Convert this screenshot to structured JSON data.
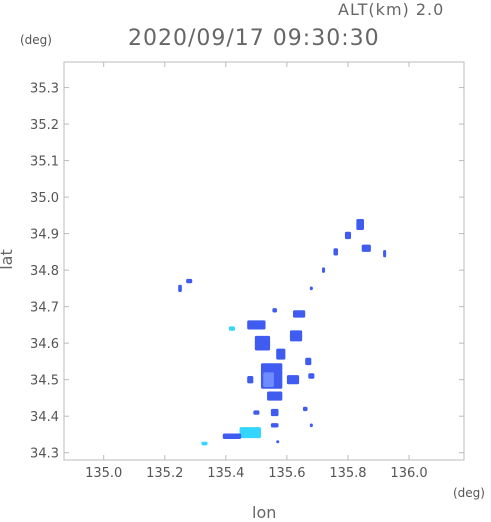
{
  "header": {
    "altitude": "ALT(km) 2.0",
    "datetime": "2020/09/17 09:30:30"
  },
  "axes": {
    "y_unit": "(deg)",
    "x_unit": "(deg)",
    "x_label": "lon",
    "y_label": "lat"
  },
  "chart_data": {
    "type": "heatmap",
    "xlabel": "lon",
    "ylabel": "lat",
    "xlim": [
      134.87,
      136.18
    ],
    "ylim": [
      34.28,
      35.37
    ],
    "x_ticks": [
      "135.0",
      "135.2",
      "135.4",
      "135.6",
      "135.8",
      "136.0"
    ],
    "y_ticks": [
      "34.3",
      "34.4",
      "34.5",
      "34.6",
      "34.7",
      "34.8",
      "34.9",
      "35.0",
      "35.1",
      "35.2",
      "35.3"
    ],
    "grid": false,
    "colors": {
      "echo_blue": "#3f5bf0",
      "echo_light": "#6f8cff",
      "echo_cyan": "#33d6ff",
      "frame": "#bbbbbb"
    },
    "echo_cells": [
      {
        "lon": 135.84,
        "lat": 34.925,
        "w": 0.025,
        "h": 0.03,
        "level": 2
      },
      {
        "lon": 135.8,
        "lat": 34.895,
        "w": 0.02,
        "h": 0.02,
        "level": 1
      },
      {
        "lon": 135.86,
        "lat": 34.86,
        "w": 0.03,
        "h": 0.02,
        "level": 2
      },
      {
        "lon": 135.76,
        "lat": 34.85,
        "w": 0.015,
        "h": 0.02,
        "level": 1
      },
      {
        "lon": 135.92,
        "lat": 34.845,
        "w": 0.01,
        "h": 0.02,
        "level": 1
      },
      {
        "lon": 135.72,
        "lat": 34.8,
        "w": 0.01,
        "h": 0.015,
        "level": 1
      },
      {
        "lon": 135.68,
        "lat": 34.75,
        "w": 0.01,
        "h": 0.01,
        "level": 1
      },
      {
        "lon": 135.28,
        "lat": 34.77,
        "w": 0.02,
        "h": 0.012,
        "level": 1
      },
      {
        "lon": 135.25,
        "lat": 34.75,
        "w": 0.012,
        "h": 0.02,
        "level": 1
      },
      {
        "lon": 135.5,
        "lat": 34.65,
        "w": 0.06,
        "h": 0.025,
        "level": 2
      },
      {
        "lon": 135.56,
        "lat": 34.69,
        "w": 0.015,
        "h": 0.012,
        "level": 1
      },
      {
        "lon": 135.64,
        "lat": 34.68,
        "w": 0.04,
        "h": 0.02,
        "level": 2
      },
      {
        "lon": 135.42,
        "lat": 34.64,
        "w": 0.02,
        "h": 0.012,
        "level": 3
      },
      {
        "lon": 135.52,
        "lat": 34.6,
        "w": 0.05,
        "h": 0.04,
        "level": 2
      },
      {
        "lon": 135.63,
        "lat": 34.62,
        "w": 0.04,
        "h": 0.03,
        "level": 2
      },
      {
        "lon": 135.58,
        "lat": 34.57,
        "w": 0.03,
        "h": 0.03,
        "level": 2
      },
      {
        "lon": 135.67,
        "lat": 34.55,
        "w": 0.02,
        "h": 0.02,
        "level": 1
      },
      {
        "lon": 135.55,
        "lat": 34.51,
        "w": 0.07,
        "h": 0.07,
        "level": 2
      },
      {
        "lon": 135.54,
        "lat": 34.5,
        "w": 0.035,
        "h": 0.04,
        "level": 4
      },
      {
        "lon": 135.62,
        "lat": 34.5,
        "w": 0.04,
        "h": 0.025,
        "level": 2
      },
      {
        "lon": 135.68,
        "lat": 34.51,
        "w": 0.02,
        "h": 0.015,
        "level": 1
      },
      {
        "lon": 135.48,
        "lat": 34.5,
        "w": 0.02,
        "h": 0.02,
        "level": 2
      },
      {
        "lon": 135.56,
        "lat": 34.455,
        "w": 0.05,
        "h": 0.025,
        "level": 2
      },
      {
        "lon": 135.5,
        "lat": 34.41,
        "w": 0.02,
        "h": 0.012,
        "level": 1
      },
      {
        "lon": 135.56,
        "lat": 34.41,
        "w": 0.025,
        "h": 0.02,
        "level": 2
      },
      {
        "lon": 135.66,
        "lat": 34.42,
        "w": 0.015,
        "h": 0.012,
        "level": 1
      },
      {
        "lon": 135.56,
        "lat": 34.375,
        "w": 0.025,
        "h": 0.012,
        "level": 2
      },
      {
        "lon": 135.68,
        "lat": 34.375,
        "w": 0.01,
        "h": 0.01,
        "level": 1
      },
      {
        "lon": 135.48,
        "lat": 34.355,
        "w": 0.07,
        "h": 0.03,
        "level": 3
      },
      {
        "lon": 135.42,
        "lat": 34.345,
        "w": 0.06,
        "h": 0.015,
        "level": 2
      },
      {
        "lon": 135.33,
        "lat": 34.325,
        "w": 0.02,
        "h": 0.01,
        "level": 3
      },
      {
        "lon": 135.57,
        "lat": 34.33,
        "w": 0.01,
        "h": 0.008,
        "level": 1
      }
    ]
  }
}
